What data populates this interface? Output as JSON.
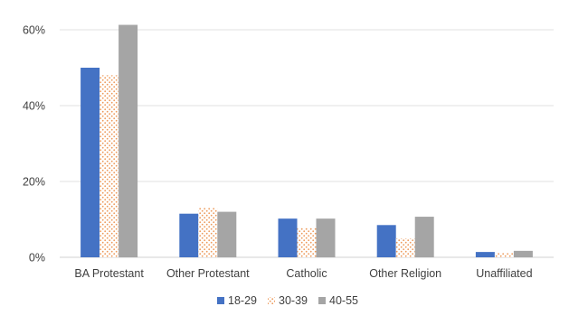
{
  "chart_data": {
    "type": "bar",
    "categories": [
      "BA Protestant",
      "Other Protestant",
      "Catholic",
      "Other Religion",
      "Unaffiliated"
    ],
    "series": [
      {
        "name": "18-29",
        "values": [
          50,
          11.5,
          10.2,
          8.5,
          1.4
        ],
        "color": "#4472c4",
        "pattern": "solid"
      },
      {
        "name": "30-39",
        "values": [
          48,
          13,
          7.8,
          5,
          1.1
        ],
        "color": "#ed7d31",
        "pattern": "dots"
      },
      {
        "name": "40-55",
        "values": [
          61.3,
          12,
          10.2,
          10.7,
          1.7
        ],
        "color": "#a5a5a5",
        "pattern": "solid"
      }
    ],
    "ylim": [
      0,
      60
    ],
    "yticks": [
      0,
      20,
      40,
      60
    ],
    "ytick_labels": [
      "0%",
      "20%",
      "40%",
      "60%"
    ],
    "grid": true,
    "legend": "bottom",
    "title": "",
    "xlabel": "",
    "ylabel": ""
  }
}
